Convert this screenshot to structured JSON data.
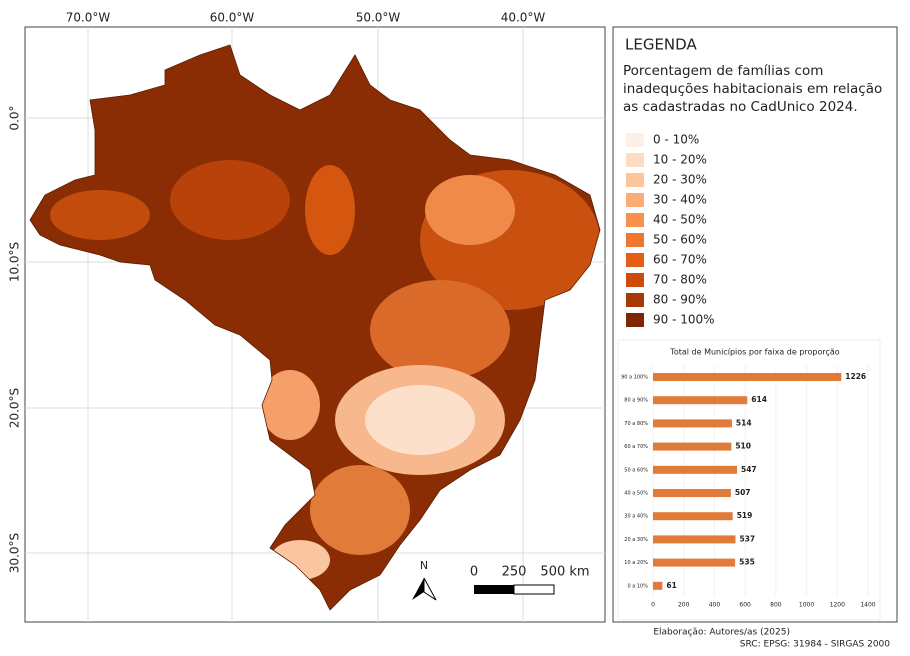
{
  "map": {
    "lon_labels": [
      "70.0°W",
      "60.0°W",
      "50.0°W",
      "40.0°W"
    ],
    "lat_labels": [
      "0.0°",
      "10.0°S",
      "20.0°S",
      "30.0°S"
    ],
    "north": "N",
    "scale_labels": [
      "0",
      "250",
      "500 km"
    ]
  },
  "legend": {
    "title": "LEGENDA",
    "description": "Porcentagem de famílias com inadequções habitacionais em relação as cadastradas no CadUnico 2024.",
    "items": [
      {
        "label": "0 - 10%",
        "color": "#fef0e6"
      },
      {
        "label": "10 - 20%",
        "color": "#fddcc4"
      },
      {
        "label": "20 - 30%",
        "color": "#fdc59e"
      },
      {
        "label": "30 - 40%",
        "color": "#fcac75"
      },
      {
        "label": "40 - 50%",
        "color": "#f8914f"
      },
      {
        "label": "50 - 60%",
        "color": "#f07630"
      },
      {
        "label": "60 - 70%",
        "color": "#e35f16"
      },
      {
        "label": "70 - 80%",
        "color": "#cc4a0a"
      },
      {
        "label": "80 - 90%",
        "color": "#a63a06"
      },
      {
        "label": "90 - 100%",
        "color": "#7f2704"
      }
    ]
  },
  "chart_data": {
    "type": "bar",
    "orientation": "horizontal",
    "title": "Total de Municípios por faixa de proporção",
    "categories": [
      "90 a 100%",
      "80 a 90%",
      "70 a 80%",
      "60 a 70%",
      "50 a 60%",
      "40 a 50%",
      "30 a 40%",
      "20 a 30%",
      "10 a 20%",
      "0 a 10%"
    ],
    "values": [
      1226,
      614,
      514,
      510,
      547,
      507,
      519,
      537,
      535,
      61
    ],
    "color": "#e07b39",
    "xlim": [
      0,
      1400
    ],
    "xticks": [
      0,
      200,
      400,
      600,
      800,
      1000,
      1200,
      1400
    ]
  },
  "footer": {
    "author": "Elaboração: Autores/as (2025)",
    "crs": "SRC: EPSG: 31984 - SIRGAS 2000"
  }
}
